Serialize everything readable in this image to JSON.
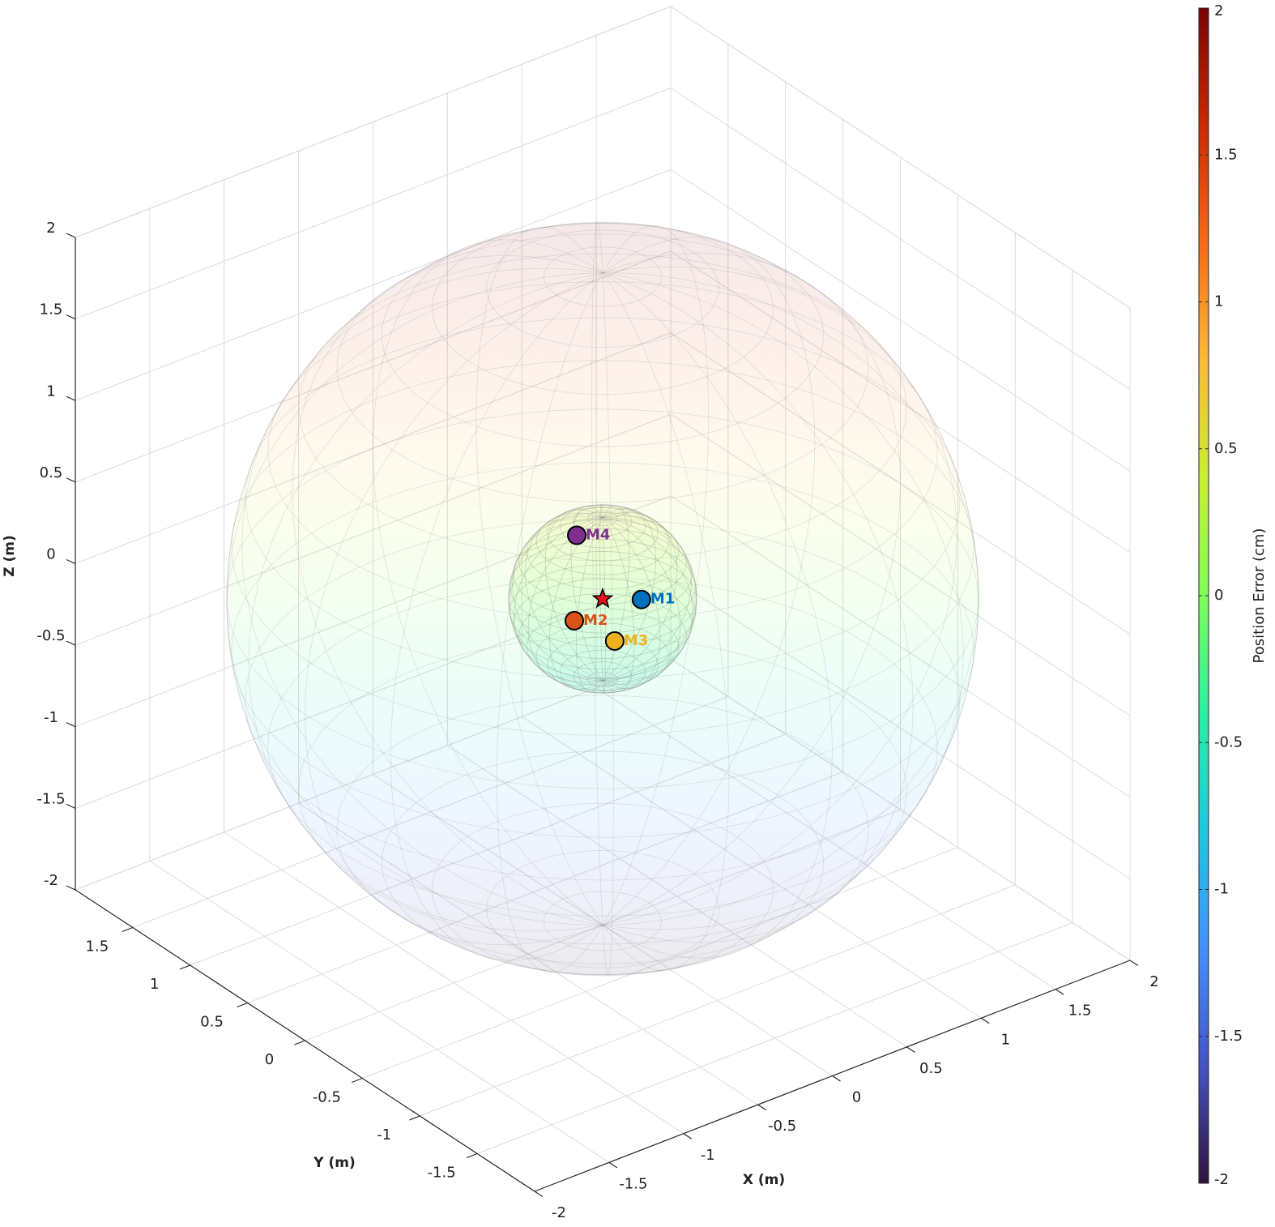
{
  "chart_data": {
    "type": "scatter3d",
    "xlabel": "X (m)",
    "ylabel": "Y (m)",
    "zlabel": "Z (m)",
    "xlim": [
      -2,
      2
    ],
    "ylim": [
      -2,
      2
    ],
    "zlim": [
      -2,
      2
    ],
    "xticks": [
      -2,
      -1.5,
      -1,
      -0.5,
      0,
      0.5,
      1,
      1.5,
      2
    ],
    "yticks": [
      -1.5,
      -1,
      -0.5,
      0,
      0.5,
      1,
      1.5
    ],
    "zticks": [
      -2,
      -1.5,
      -1,
      -0.5,
      0,
      0.5,
      1,
      1.5,
      2
    ],
    "grid": true,
    "colormap": "turbo",
    "spheres": [
      {
        "center": [
          0,
          0,
          0
        ],
        "radius": 2
      },
      {
        "center": [
          0,
          0,
          0
        ],
        "radius": 0.5
      }
    ],
    "origin": {
      "x": 0,
      "y": 0,
      "z": 0,
      "color": "#e8141c"
    },
    "points": [
      {
        "label": "M1",
        "color": "#0072bd",
        "x": 0.16,
        "y": -0.13,
        "z": 0
      },
      {
        "label": "M2",
        "color": "#d95319",
        "x": -0.26,
        "y": -0.09,
        "z": 0
      },
      {
        "label": "M3",
        "color": "#edb120",
        "x": -0.22,
        "y": -0.39,
        "z": 0
      },
      {
        "label": "M4",
        "color": "#7e2f8e",
        "x": -0.12,
        "y": 0.07,
        "z": 0.4
      }
    ],
    "colorbar": {
      "label": "Position Error (cm)",
      "clim": [
        -2,
        2
      ],
      "ticks": [
        -2,
        -1.5,
        -1,
        -0.5,
        0,
        0.5,
        1,
        1.5,
        2
      ]
    }
  }
}
